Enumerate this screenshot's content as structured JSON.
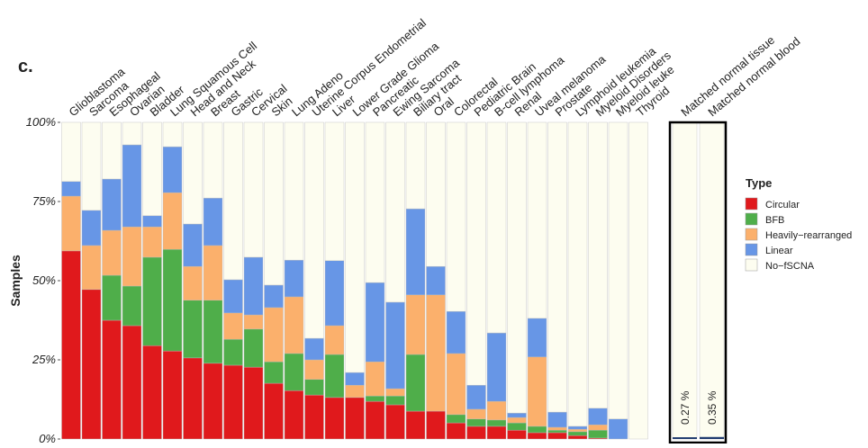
{
  "chart_data": [
    {
      "type": "stacked_bar",
      "panel": "c.",
      "y_label": "Samples",
      "legend_title": "Type",
      "legend_position": "right",
      "categories": [
        "Glioblastoma",
        "Sarcoma",
        "Esophageal",
        "Ovarian",
        "Bladder",
        "Lung Squamous Cell",
        "Head and Neck",
        "Breast",
        "Gastric",
        "Cervical",
        "Skin",
        "Lung Adeno",
        "Uterine Corpus Endometrial",
        "Liver",
        "Lower Grade Glioma",
        "Pancreatic",
        "Ewing Sarcoma",
        "Biliary tract",
        "Oral",
        "Colorectal",
        "Pediatric Brain",
        "B-cell lymphoma",
        "Renal",
        "Uveal melanoma",
        "Prostate",
        "Lymphoid leukemia",
        "Myeloid Disorders",
        "Myeloid leuke",
        "Thyroid"
      ],
      "series": [
        {
          "name": "Circular",
          "color": "#e0191c",
          "values": [
            59.4,
            47.2,
            37.5,
            35.8,
            29.5,
            27.8,
            25.6,
            23.9,
            23.3,
            22.7,
            17.6,
            15.3,
            13.9,
            13.1,
            13.1,
            11.9,
            10.8,
            8.8,
            8.8,
            5.1,
            4,
            4,
            2.8,
            2,
            2,
            1.1,
            0.3,
            0,
            0
          ]
        },
        {
          "name": "BFB",
          "color": "#4fae4a",
          "values": [
            0,
            0,
            14.2,
            12.5,
            27.9,
            32.1,
            18.2,
            19.9,
            8.2,
            12,
            6.8,
            11.7,
            4.9,
            13.6,
            0,
            1.7,
            2.8,
            17.9,
            0,
            2.6,
            2.3,
            2,
            2.3,
            2,
            0.8,
            1.2,
            2.5,
            0,
            0
          ]
        },
        {
          "name": "Heavily−rearranged",
          "color": "#fbb06c",
          "values": [
            17.3,
            13.9,
            14.2,
            18.7,
            9.6,
            17.9,
            10.7,
            17.3,
            8.3,
            4.5,
            17.1,
            17.9,
            6.2,
            9.1,
            3.9,
            10.8,
            2.3,
            18.8,
            36.7,
            19.3,
            3.1,
            5.9,
            1.7,
            21.9,
            0.9,
            0.8,
            1.7,
            0,
            0
          ]
        },
        {
          "name": "Linear",
          "color": "#6796e6",
          "values": [
            4.6,
            11.1,
            16.2,
            25.9,
            3.5,
            14.5,
            13.4,
            15,
            10.5,
            18.2,
            7.1,
            11.6,
            6.8,
            20.5,
            4,
            25,
            27.3,
            27.2,
            9,
            13.3,
            7.6,
            21.6,
            1.4,
            12.2,
            4.8,
            0.9,
            5.2,
            6.3,
            0
          ]
        },
        {
          "name": "No−fSCNA",
          "color": "#fdfdf0",
          "values": [
            18.7,
            27.8,
            17.9,
            7.1,
            29.5,
            7.7,
            32.1,
            23.9,
            49.7,
            42.6,
            51.4,
            43.5,
            68.2,
            43.7,
            79,
            50.6,
            56.8,
            27.3,
            45.5,
            59.7,
            83,
            66.5,
            91.8,
            61.9,
            91.5,
            96,
            90.3,
            93.7,
            100
          ]
        }
      ],
      "ylim": [
        0,
        100
      ],
      "yticks": [
        {
          "value": 0,
          "label": "0%"
        },
        {
          "value": 25,
          "label": "25%"
        },
        {
          "value": 50,
          "label": "50%"
        },
        {
          "value": 75,
          "label": "75%"
        },
        {
          "value": 100,
          "label": "100%"
        }
      ]
    },
    {
      "type": "bar",
      "categories": [
        "Matched normal tissue",
        "Matched normal blood"
      ],
      "values": [
        0.27,
        0.35
      ],
      "value_labels": [
        "0.27 %",
        "0.35 %"
      ],
      "color": "#1f3a6e",
      "ylim": [
        0,
        100
      ]
    }
  ]
}
